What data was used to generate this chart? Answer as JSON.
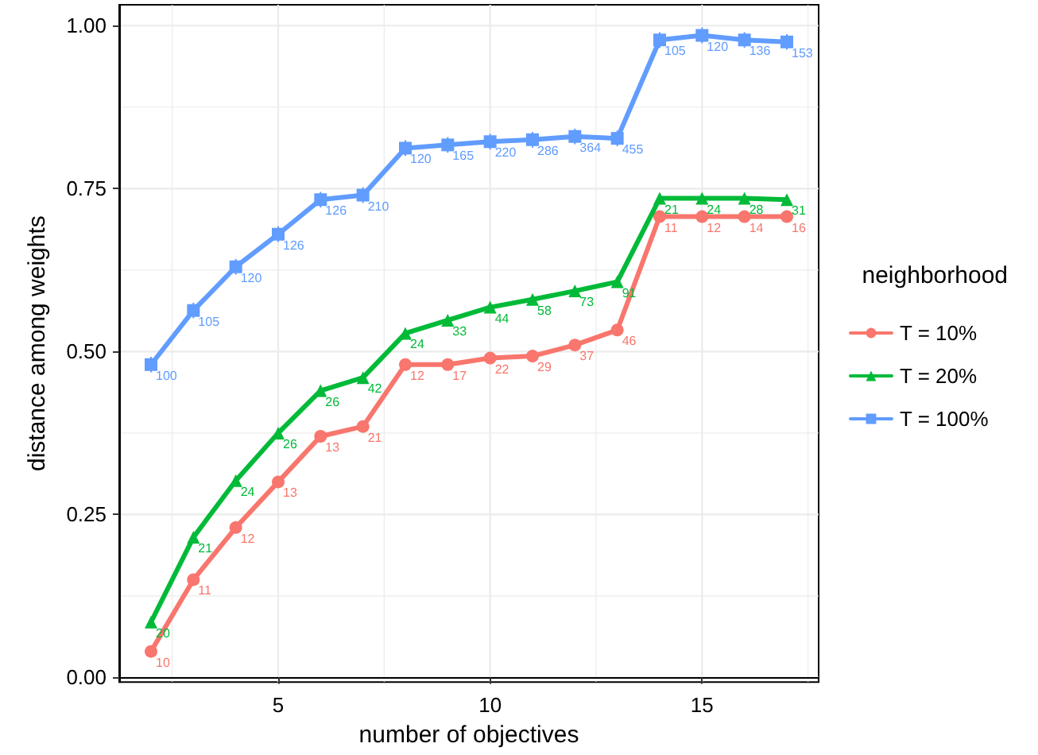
{
  "chart_data": {
    "type": "line",
    "xlabel": "number of objectives",
    "ylabel": "distance among weights",
    "legend_title": "neighborhood",
    "legend": "right",
    "grid": true,
    "x": [
      2,
      3,
      4,
      5,
      6,
      7,
      8,
      9,
      10,
      11,
      12,
      13,
      14,
      15,
      16,
      17
    ],
    "xlim": [
      1.25,
      17.75
    ],
    "xticks": [
      {
        "value": 2.5,
        "label": null
      },
      5,
      {
        "value": 7.5,
        "label": null
      },
      10,
      {
        "value": 12.5,
        "label": null
      },
      15,
      {
        "value": 17.5,
        "label": null
      }
    ],
    "ylim": [
      -0.007,
      1.032
    ],
    "yticks": [
      "0.00",
      {
        "value": 0.125,
        "label": null
      },
      {
        "value": 0.25,
        "label": "0.25"
      },
      {
        "value": 0.375,
        "label": null
      },
      {
        "value": 0.5,
        "label": "0.50"
      },
      {
        "value": 0.625,
        "label": null
      },
      {
        "value": 0.75,
        "label": "0.75"
      },
      {
        "value": 0.875,
        "label": null
      },
      {
        "value": 1,
        "label": "1.00"
      }
    ],
    "series": [
      {
        "name": "T = 10%",
        "color": "#f8766d",
        "marker": "circle",
        "values": [
          0.04,
          0.15,
          0.23,
          0.3,
          0.37,
          0.385,
          0.48,
          0.48,
          0.49,
          0.493,
          0.51,
          0.533,
          0.707,
          0.707,
          0.707,
          0.707
        ]
      },
      {
        "name": "T = 20%",
        "color": "#00ba38",
        "marker": "triangle",
        "values": [
          0.085,
          0.215,
          0.302,
          0.375,
          0.44,
          0.46,
          0.528,
          0.548,
          0.568,
          0.58,
          0.593,
          0.607,
          0.735,
          0.735,
          0.735,
          0.733
        ]
      },
      {
        "name": "T = 100%",
        "color": "#619cff",
        "marker": "square",
        "values": [
          0.48,
          0.563,
          0.63,
          0.68,
          0.733,
          0.74,
          0.812,
          0.817,
          0.822,
          0.825,
          0.83,
          0.827,
          0.978,
          0.985,
          0.978,
          0.975
        ],
        "errors": [
          0.012,
          0.012,
          0.012,
          0.012,
          0.012,
          0.012,
          0.012,
          0.012,
          0.012,
          0.012,
          0.012,
          0.012,
          0.012,
          0.012,
          0.012,
          0.012
        ]
      }
    ],
    "annotations": [
      {
        "text": "10",
        "x": 2,
        "y": 0.04
      },
      {
        "text": "11",
        "x": 3,
        "y": 0.15
      },
      {
        "text": "12",
        "x": 4,
        "y": 0.23
      },
      {
        "text": "13",
        "x": 5,
        "y": 0.3
      },
      {
        "text": "13",
        "x": 6,
        "y": 0.37
      },
      {
        "text": "21",
        "x": 7,
        "y": 0.385
      },
      {
        "text": "12",
        "x": 8,
        "y": 0.48
      },
      {
        "text": "17",
        "x": 9,
        "y": 0.48
      },
      {
        "text": "22",
        "x": 10,
        "y": 0.49
      },
      {
        "text": "29",
        "x": 11,
        "y": 0.493
      },
      {
        "text": "37",
        "x": 12,
        "y": 0.51
      },
      {
        "text": "46",
        "x": 13,
        "y": 0.533
      },
      {
        "text": "11",
        "x": 14,
        "y": 0.707
      },
      {
        "text": "12",
        "x": 15,
        "y": 0.707
      },
      {
        "text": "14",
        "x": 16,
        "y": 0.707
      },
      {
        "text": "16",
        "x": 17,
        "y": 0.707
      },
      {
        "text": "20",
        "x": 2,
        "y": 0.085
      },
      {
        "text": "21",
        "x": 3,
        "y": 0.215
      },
      {
        "text": "24",
        "x": 4,
        "y": 0.302
      },
      {
        "text": "26",
        "x": 5,
        "y": 0.375
      },
      {
        "text": "26",
        "x": 6,
        "y": 0.44
      },
      {
        "text": "42",
        "x": 7,
        "y": 0.46
      },
      {
        "text": "24",
        "x": 8,
        "y": 0.528
      },
      {
        "text": "33",
        "x": 9,
        "y": 0.548
      },
      {
        "text": "44",
        "x": 10,
        "y": 0.568
      },
      {
        "text": "58",
        "x": 11,
        "y": 0.58
      },
      {
        "text": "73",
        "x": 12,
        "y": 0.593
      },
      {
        "text": "91",
        "x": 13,
        "y": 0.607
      },
      {
        "text": "21",
        "x": 14,
        "y": 0.735
      },
      {
        "text": "24",
        "x": 15,
        "y": 0.735
      },
      {
        "text": "28",
        "x": 16,
        "y": 0.735
      },
      {
        "text": "31",
        "x": 17,
        "y": 0.733
      },
      {
        "text": "100",
        "x": 2,
        "y": 0.48
      },
      {
        "text": "105",
        "x": 3,
        "y": 0.563
      },
      {
        "text": "120",
        "x": 4,
        "y": 0.63
      },
      {
        "text": "126",
        "x": 5,
        "y": 0.68
      },
      {
        "text": "126",
        "x": 6,
        "y": 0.733
      },
      {
        "text": "210",
        "x": 7,
        "y": 0.74
      },
      {
        "text": "120",
        "x": 8,
        "y": 0.812
      },
      {
        "text": "165",
        "x": 9,
        "y": 0.817
      },
      {
        "text": "220",
        "x": 10,
        "y": 0.822
      },
      {
        "text": "286",
        "x": 11,
        "y": 0.825
      },
      {
        "text": "364",
        "x": 12,
        "y": 0.83
      },
      {
        "text": "455",
        "x": 13,
        "y": 0.827
      },
      {
        "text": "105",
        "x": 14,
        "y": 0.978
      },
      {
        "text": "120",
        "x": 15,
        "y": 0.985
      },
      {
        "text": "136",
        "x": 16,
        "y": 0.978
      },
      {
        "text": "153",
        "x": 17,
        "y": 0.975
      }
    ]
  }
}
